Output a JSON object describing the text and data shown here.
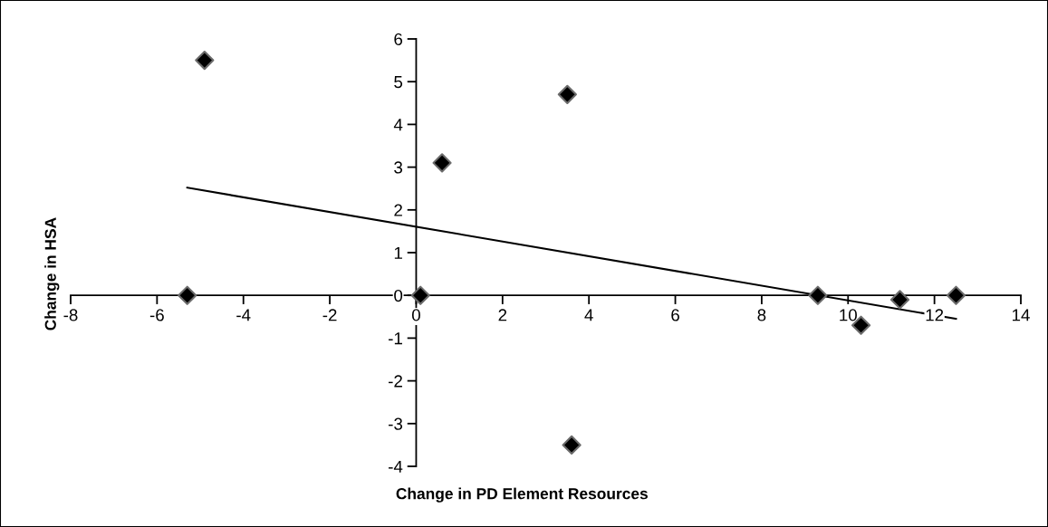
{
  "chart_data": {
    "type": "scatter",
    "xlabel": "Change in PD Element Resources",
    "ylabel": "Change in HSA",
    "xlim": [
      -8,
      14
    ],
    "xticks": [
      -8,
      -6,
      -4,
      -2,
      0,
      2,
      4,
      6,
      8,
      10,
      12,
      14
    ],
    "ylim": [
      -4,
      6
    ],
    "yticks": [
      -4,
      -3,
      -2,
      -1,
      0,
      1,
      2,
      3,
      4,
      5,
      6
    ],
    "grid": false,
    "marker": "diamond",
    "series": [
      {
        "color": "#000000",
        "x": [
          -5.3,
          -4.9,
          0.1,
          0.6,
          3.5,
          3.6,
          9.3,
          10.3,
          11.2,
          12.5
        ],
        "values": [
          0,
          5.5,
          0,
          3.1,
          4.7,
          -3.5,
          0,
          -0.7,
          -0.1,
          0
        ]
      },
      {
        "type": "line",
        "marker": "none",
        "color": "#000000",
        "x": [
          -5.3,
          12.5
        ],
        "values": [
          2.52,
          -0.55
        ]
      }
    ]
  }
}
